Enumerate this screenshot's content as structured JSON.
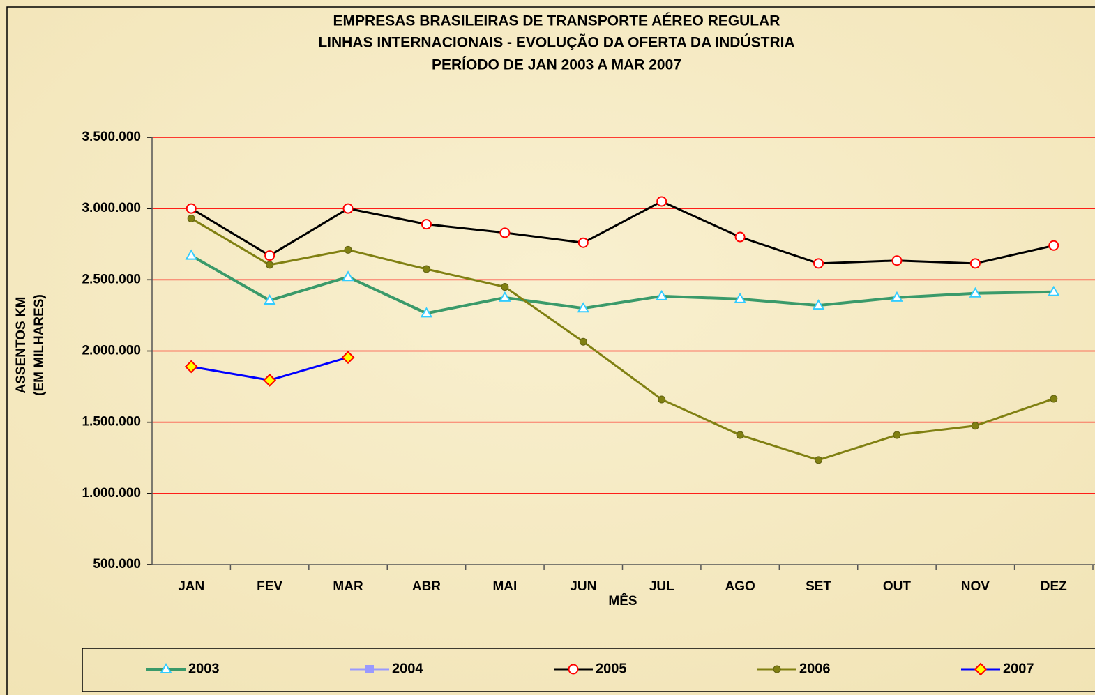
{
  "chart_data": {
    "type": "line",
    "title": [
      "EMPRESAS BRASILEIRAS DE TRANSPORTE AÉREO REGULAR",
      "LINHAS INTERNACIONAIS - EVOLUÇÃO DA OFERTA DA INDÚSTRIA",
      "PERÍODO DE JAN 2003 A MAR 2007"
    ],
    "ylabel": [
      "ASSENTOS KM",
      "(EM MILHARES)"
    ],
    "xlabel": "MÊS",
    "categories": [
      "JAN",
      "FEV",
      "MAR",
      "ABR",
      "MAI",
      "JUN",
      "JUL",
      "AGO",
      "SET",
      "OUT",
      "NOV",
      "DEZ"
    ],
    "ylim": [
      500000,
      3500000
    ],
    "yticks": [
      {
        "value": 500000,
        "label": "500.000"
      },
      {
        "value": 1000000,
        "label": "1.000.000"
      },
      {
        "value": 1500000,
        "label": "1.500.000"
      },
      {
        "value": 2000000,
        "label": "2.000.000"
      },
      {
        "value": 2500000,
        "label": "2.500.000"
      },
      {
        "value": 3000000,
        "label": "3.000.000"
      },
      {
        "value": 3500000,
        "label": "3.500.000"
      }
    ],
    "grid": true,
    "grid_color": "#ff0000",
    "legend": "bottom",
    "series": [
      {
        "name": "2003",
        "color": "#3a9a6a",
        "marker": "triangle",
        "marker_stroke": "#33ccff",
        "marker_fill": "#ffffff",
        "width": 4,
        "values": [
          2670000,
          2355000,
          2520000,
          2265000,
          2375000,
          2300000,
          2385000,
          2365000,
          2320000,
          2375000,
          2405000,
          2415000
        ]
      },
      {
        "name": "2004",
        "color": "#9999ff",
        "marker": "square",
        "marker_stroke": "#9999ff",
        "marker_fill": "#9999ff",
        "width": 3,
        "values": [
          null,
          null,
          null,
          null,
          null,
          null,
          null,
          null,
          null,
          null,
          null,
          null
        ]
      },
      {
        "name": "2005",
        "color": "#000000",
        "marker": "circle",
        "marker_stroke": "#ff0000",
        "marker_fill": "#ffffff",
        "width": 3,
        "values": [
          3000000,
          2670000,
          3000000,
          2890000,
          2830000,
          2760000,
          3050000,
          2800000,
          2615000,
          2635000,
          2615000,
          2740000
        ]
      },
      {
        "name": "2006",
        "color": "#808012",
        "marker": "dot",
        "marker_stroke": "#5f5f10",
        "marker_fill": "#808012",
        "width": 3,
        "values": [
          2930000,
          2605000,
          2710000,
          2575000,
          2450000,
          2065000,
          1660000,
          1410000,
          1235000,
          1410000,
          1475000,
          1665000
        ]
      },
      {
        "name": "2007",
        "color": "#0000ff",
        "marker": "diamond",
        "marker_stroke": "#ff0000",
        "marker_fill": "#ffff00",
        "width": 3,
        "values": [
          1890000,
          1795000,
          1955000,
          null,
          null,
          null,
          null,
          null,
          null,
          null,
          null,
          null
        ]
      }
    ]
  }
}
